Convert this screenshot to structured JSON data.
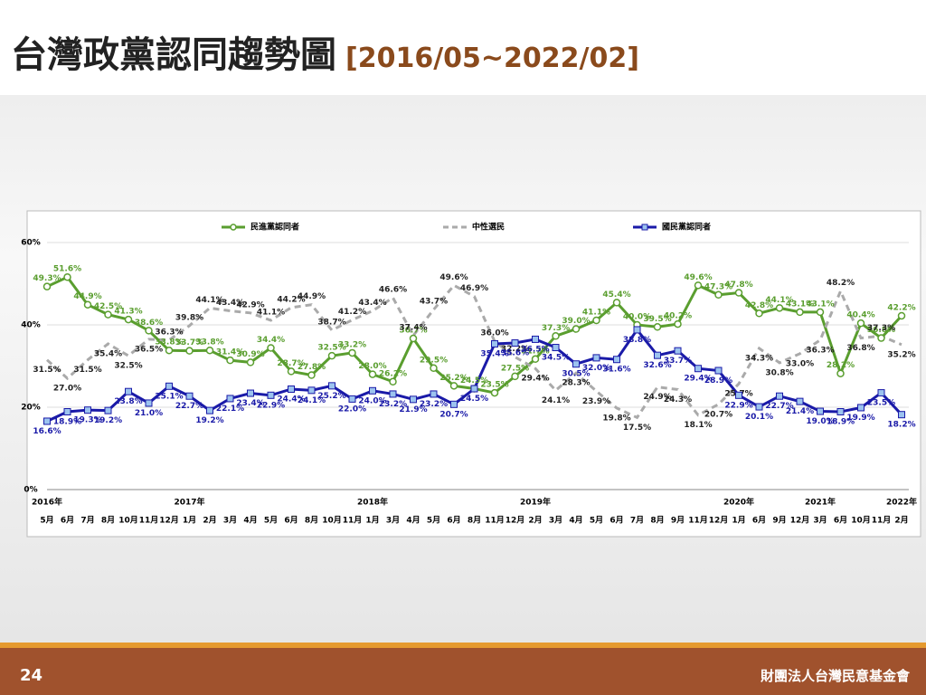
{
  "header": {
    "title": "台灣政黨認同趨勢圖",
    "subtitle": "[2016/05~2022/02]"
  },
  "footer": {
    "page": "24",
    "org": "財團法人台灣民意基金會"
  },
  "chart_data": {
    "type": "line",
    "categories": [
      "5月",
      "6月",
      "7月",
      "8月",
      "10月",
      "11月",
      "12月",
      "1月",
      "2月",
      "3月",
      "4月",
      "5月",
      "6月",
      "8月",
      "10月",
      "11月",
      "1月",
      "3月",
      "4月",
      "5月",
      "6月",
      "8月",
      "11月",
      "12月",
      "2月",
      "3月",
      "4月",
      "5月",
      "6月",
      "7月",
      "8月",
      "9月",
      "11月",
      "12月",
      "1月",
      "6月",
      "9月",
      "12月",
      "3月",
      "6月",
      "10月",
      "11月",
      "2月"
    ],
    "years": [
      "2016年",
      null,
      null,
      null,
      null,
      null,
      null,
      "2017年",
      null,
      null,
      null,
      null,
      null,
      null,
      null,
      null,
      "2018年",
      null,
      null,
      null,
      null,
      null,
      null,
      null,
      "2019年",
      null,
      null,
      null,
      null,
      null,
      null,
      null,
      null,
      null,
      "2020年",
      null,
      null,
      null,
      "2021年",
      null,
      null,
      null,
      "2022年"
    ],
    "ylim": [
      0,
      60
    ],
    "yticks": [
      {
        "value": 0,
        "label": "0%"
      },
      {
        "value": 20,
        "label": "20%"
      },
      {
        "value": 40,
        "label": "40%"
      },
      {
        "value": 60,
        "label": "60%"
      }
    ],
    "series": [
      {
        "name": "民進黨認同者",
        "color": "#5a9e2f",
        "marker": "circle",
        "values": [
          49.3,
          51.6,
          44.9,
          42.5,
          41.3,
          38.6,
          33.8,
          33.7,
          33.8,
          31.4,
          30.9,
          34.4,
          28.7,
          27.8,
          32.5,
          33.2,
          28.0,
          26.2,
          36.7,
          29.5,
          25.2,
          24.5,
          23.5,
          27.5,
          31.7,
          37.3,
          39.0,
          41.1,
          45.4,
          40.0,
          39.5,
          40.2,
          49.6,
          47.3,
          47.8,
          42.8,
          44.1,
          43.1,
          43.1,
          28.2,
          40.4,
          36.8,
          42.2
        ],
        "value_labels": [
          "49.3%",
          "51.6%",
          "44.9%",
          "42.5%",
          "41.3%",
          "38.6%",
          "33.8%",
          "33.7%",
          "33.8%",
          "31.4%",
          "30.9%",
          "34.4%",
          "28.7%",
          "27.8%",
          "32.5%",
          "33.2%",
          "28.0%",
          "26.2%",
          "36.7%",
          "29.5%",
          "25.2%",
          "24.5%",
          "23.5%",
          "27.5%",
          "31.7%",
          "37.3%",
          "39.0%",
          "41.1%",
          "45.4%",
          "40.0%",
          "39.5%",
          "40.2%",
          "49.6%",
          "47.3%",
          "47.8%",
          "42.8%",
          "44.1%",
          "43.1%",
          "43.1%",
          "28.2%",
          "40.4%",
          "36.8%",
          "42.2%"
        ]
      },
      {
        "name": "中性選民",
        "color": "#aaaaaa",
        "marker": "none",
        "dashed": true,
        "values": [
          31.5,
          27.0,
          31.5,
          35.4,
          32.5,
          36.5,
          36.3,
          39.8,
          44.1,
          43.4,
          42.9,
          41.1,
          44.2,
          44.9,
          38.7,
          41.2,
          43.4,
          46.6,
          37.4,
          43.7,
          49.6,
          46.9,
          36.0,
          32.2,
          29.4,
          24.1,
          28.3,
          23.9,
          19.8,
          17.5,
          24.9,
          24.3,
          18.1,
          20.7,
          25.7,
          34.3,
          30.8,
          33.0,
          36.3,
          48.2,
          36.8,
          37.3,
          35.2
        ],
        "value_labels": [
          "31.5%",
          "27.0%",
          "31.5%",
          "35.4%",
          "32.5%",
          "36.5%",
          "36.3%",
          "39.8%",
          "44.1%",
          "43.4%",
          "42.9%",
          "41.1%",
          "44.2%",
          "44.9%",
          "38.7%",
          "41.2%",
          "43.4%",
          "46.6%",
          "37.4%",
          "43.7%",
          "49.6%",
          "46.9%",
          "36.0%",
          "32.2%",
          "29.4%",
          "24.1%",
          "28.3%",
          "23.9%",
          "19.8%",
          "17.5%",
          "24.9%",
          "24.3%",
          "18.1%",
          "20.7%",
          "25.7%",
          "34.3%",
          "30.8%",
          "33.0%",
          "36.3%",
          "48.2%",
          "36.8%",
          "37.3%",
          "35.2%"
        ]
      },
      {
        "name": "國民黨認同者",
        "color": "#1a1aa8",
        "marker": "square",
        "values": [
          16.6,
          18.9,
          19.3,
          19.2,
          23.8,
          21.0,
          25.1,
          22.7,
          19.2,
          22.1,
          23.4,
          22.9,
          24.4,
          24.1,
          25.2,
          22.0,
          24.0,
          23.2,
          21.9,
          23.2,
          20.7,
          24.5,
          35.4,
          35.6,
          36.5,
          34.5,
          30.5,
          32.0,
          31.6,
          38.8,
          32.6,
          33.7,
          29.4,
          28.9,
          22.9,
          20.1,
          22.7,
          21.4,
          19.0,
          18.9,
          19.9,
          23.5,
          18.2
        ],
        "value_labels": [
          "16.6%",
          "18.9%",
          "19.3%",
          "19.2%",
          "23.8%",
          "21.0%",
          "25.1%",
          "22.7%",
          "19.2%",
          "22.1%",
          "23.4%",
          "22.9%",
          "24.4%",
          "24.1%",
          "25.2%",
          "22.0%",
          "24.0%",
          "23.2%",
          "21.9%",
          "23.2%",
          "20.7%",
          "24.5%",
          "35.4%",
          "35.6%",
          "36.5%",
          "34.5%",
          "30.5%",
          "32.0%",
          "31.6%",
          "38.8%",
          "32.6%",
          "33.7%",
          "29.4%",
          "28.9%",
          "22.9%",
          "20.1%",
          "22.7%",
          "21.4%",
          "19.0%",
          "18.9%",
          "19.9%",
          "23.5%",
          "18.2%"
        ]
      }
    ],
    "grid": true,
    "legend": "top"
  }
}
